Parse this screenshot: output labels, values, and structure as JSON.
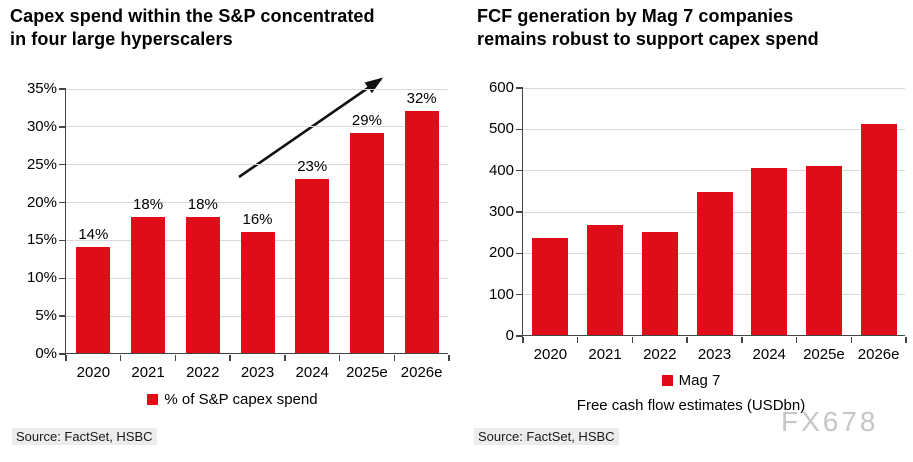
{
  "watermark": {
    "text": "FX678",
    "color": "#c5c6c8"
  },
  "chart_data": [
    {
      "type": "bar",
      "title": "Capex spend within the S&P concentrated in four large hyperscalers",
      "title_lines": [
        "Capex spend within the S&P concentrated",
        "in four large hyperscalers"
      ],
      "categories": [
        "2020",
        "2021",
        "2022",
        "2023",
        "2024",
        "2025e",
        "2026e"
      ],
      "values": [
        14,
        18,
        18,
        16,
        23,
        29,
        32
      ],
      "data_labels": [
        "14%",
        "18%",
        "18%",
        "16%",
        "23%",
        "29%",
        "32%"
      ],
      "unit": "%",
      "ylim": [
        0,
        35
      ],
      "ytick_step": 5,
      "ytick_labels": [
        "0%",
        "5%",
        "10%",
        "15%",
        "20%",
        "25%",
        "30%",
        "35%"
      ],
      "grid": true,
      "bar_color": "#de0d18",
      "legend_position": "bottom",
      "legend": [
        {
          "label": "% of S&P capex spend",
          "color": "#de0d18"
        }
      ],
      "annotation": "upward-trend-arrow",
      "xlabel": "",
      "ylabel": "",
      "source": "Source: FactSet, HSBC"
    },
    {
      "type": "bar",
      "title": "FCF generation by Mag 7 companies remains robust to support capex spend",
      "title_lines": [
        "FCF generation by Mag 7 companies",
        "remains robust to support capex spend"
      ],
      "categories": [
        "2020",
        "2021",
        "2022",
        "2023",
        "2024",
        "2025e",
        "2026e"
      ],
      "values": [
        235,
        265,
        250,
        345,
        405,
        410,
        510
      ],
      "unit": "USDbn",
      "ylim": [
        0,
        600
      ],
      "ytick_step": 100,
      "ytick_labels": [
        "0",
        "100",
        "200",
        "300",
        "400",
        "500",
        "600"
      ],
      "grid": true,
      "bar_color": "#de0d18",
      "legend_position": "bottom",
      "legend": [
        {
          "label": "Mag 7",
          "color": "#de0d18"
        }
      ],
      "xlabel": "Free cash flow estimates (USDbn)",
      "ylabel": "",
      "source": "Source: FactSet, HSBC"
    }
  ]
}
